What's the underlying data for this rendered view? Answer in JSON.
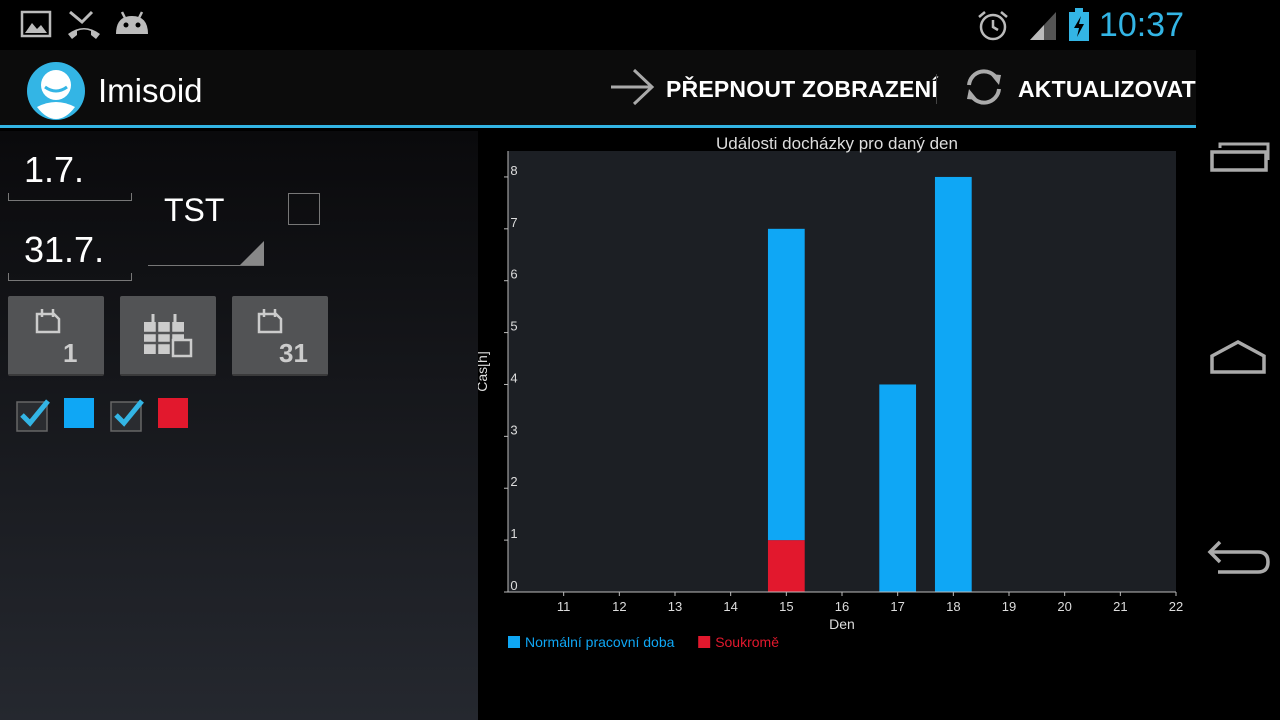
{
  "status_bar": {
    "time": "10:37",
    "icons": [
      "image-icon",
      "missed-call-icon",
      "android-debug-icon",
      "alarm-icon",
      "signal-icon",
      "battery-charging-icon"
    ]
  },
  "action_bar": {
    "app_title": "Imisoid",
    "switch_view_label": "PŘEPNOUT ZOBRAZENÍ",
    "refresh_label": "AKTUALIZOVAT",
    "accent_color": "#33b5e5"
  },
  "filters": {
    "date_from": "1.7.",
    "date_to": "31.7.",
    "user_selected": "TST",
    "user_checkbox_checked": false,
    "buttons": [
      "first-day-button",
      "whole-month-button",
      "last-day-button"
    ],
    "first_day_number": "1",
    "last_day_number": "31",
    "series_toggles": [
      {
        "checked": true,
        "color": "#0fa7f5"
      },
      {
        "checked": true,
        "color": "#e2182d"
      }
    ]
  },
  "chart_data": {
    "type": "bar",
    "stacked": true,
    "title": "Události docházky pro daný den",
    "xlabel": "Den",
    "ylabel": "Čas[h]",
    "x_ticks": [
      "11",
      "12",
      "13",
      "14",
      "15",
      "16",
      "17",
      "18",
      "19",
      "20",
      "21",
      "22"
    ],
    "y_ticks": [
      "0",
      "1",
      "2",
      "3",
      "4",
      "5",
      "6",
      "7",
      "8"
    ],
    "xlim": [
      10,
      22
    ],
    "ylim": [
      0,
      8.5
    ],
    "categories": [
      "15",
      "17",
      "18"
    ],
    "series": [
      {
        "name": "Normální pracovní doba",
        "color": "#0fa7f5",
        "values": [
          6.0,
          4.0,
          8.0
        ]
      },
      {
        "name": "Soukromě",
        "color": "#e2182d",
        "values": [
          1.0,
          0,
          0
        ]
      }
    ],
    "legend_position": "bottom-left",
    "grid": false
  },
  "nav_bar": {
    "buttons": [
      "recent-apps-button",
      "home-button",
      "back-button"
    ]
  }
}
